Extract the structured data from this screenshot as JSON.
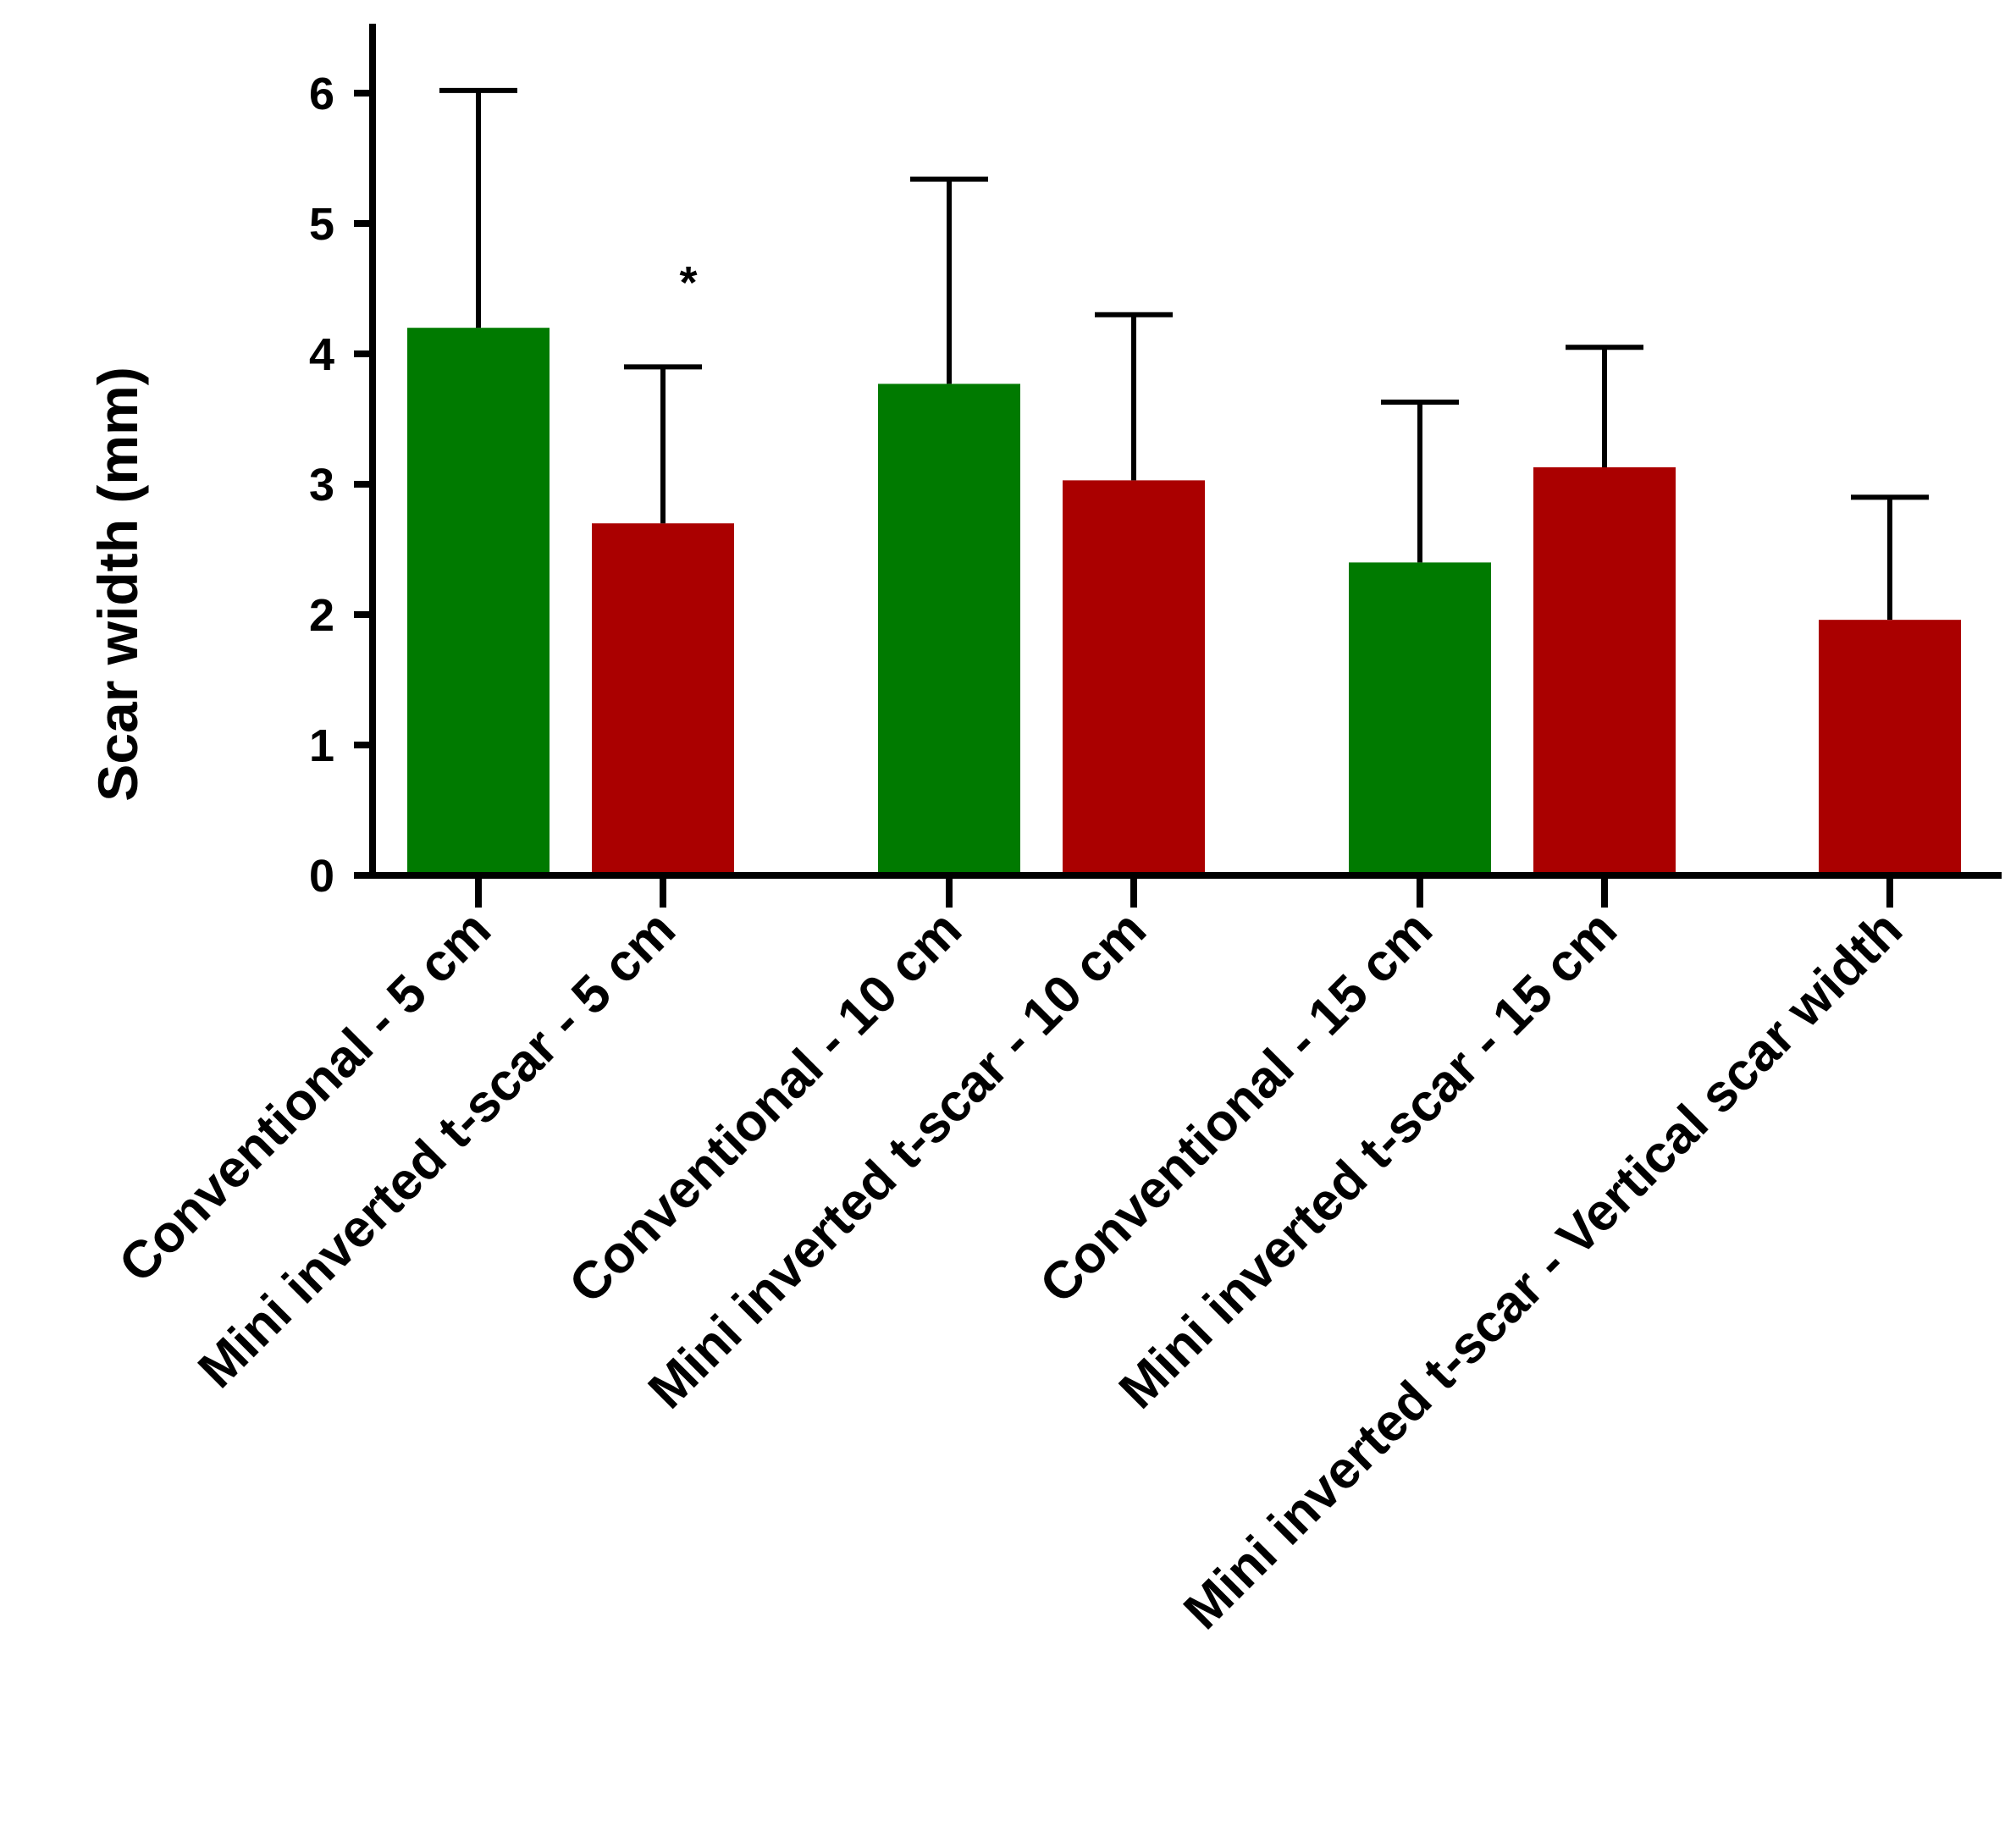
{
  "chart_data": {
    "type": "bar",
    "title": "",
    "xlabel": "",
    "ylabel": "Scar width (mm)",
    "ylim": [
      0,
      6.5
    ],
    "yticks": [
      0,
      1,
      2,
      3,
      4,
      5,
      6
    ],
    "categories": [
      "Conventional - 5 cm",
      "Mini inverted t-scar  - 5 cm",
      "Conventional - 10 cm",
      "Mini inverted t-scar - 10 cm",
      "Conventional - 15 cm",
      "Mini inverted t-scar - 15 cm",
      "Mini inverted t-scar - Vertical scar width"
    ],
    "values": [
      4.2,
      2.7,
      3.77,
      3.03,
      2.4,
      3.13,
      1.96
    ],
    "error_upper": [
      6.02,
      3.9,
      5.34,
      4.3,
      3.63,
      4.05,
      2.9
    ],
    "bar_colors": [
      "#007a00",
      "#aa0000",
      "#007a00",
      "#aa0000",
      "#007a00",
      "#aa0000",
      "#aa0000"
    ],
    "annotations": [
      {
        "category_index": 1,
        "text": "*"
      }
    ]
  }
}
